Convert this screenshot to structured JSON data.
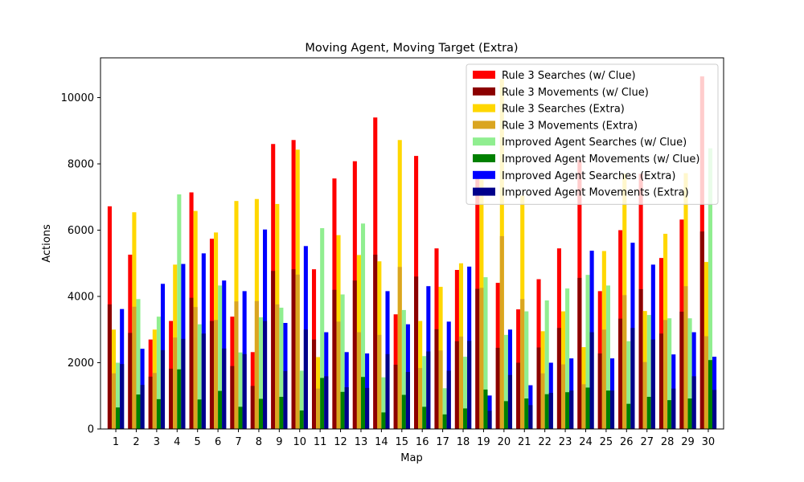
{
  "chart_data": {
    "type": "bar",
    "title": "Moving Agent, Moving Target (Extra)",
    "xlabel": "Map",
    "ylabel": "Actions",
    "ylim": [
      0,
      11200
    ],
    "yticks": [
      0,
      2000,
      4000,
      6000,
      8000,
      10000
    ],
    "grid": false,
    "legend_position": "upper-right",
    "categories": [
      "1",
      "2",
      "3",
      "4",
      "5",
      "6",
      "7",
      "8",
      "9",
      "10",
      "11",
      "12",
      "13",
      "14",
      "15",
      "16",
      "17",
      "18",
      "19",
      "20",
      "21",
      "22",
      "23",
      "24",
      "25",
      "26",
      "27",
      "28",
      "29",
      "30"
    ],
    "groups": [
      {
        "searches": {
          "name": "Rule 3 Searches (w/ Clue)",
          "color": "#ff0000",
          "values": [
            6720,
            5260,
            2700,
            3260,
            7140,
            5740,
            3390,
            2320,
            8600,
            8720,
            4820,
            7560,
            8080,
            9400,
            3460,
            8240,
            5450,
            4800,
            7560,
            4410,
            3610,
            4520,
            5450,
            8120,
            4160,
            6000,
            7700,
            5160,
            6320,
            10640
          ]
        },
        "movements": {
          "name": "Rule 3 Movements (w/ Clue)",
          "color": "#8b0000",
          "values": [
            3760,
            2900,
            1580,
            1820,
            3960,
            3260,
            1900,
            1300,
            4770,
            4820,
            2700,
            4200,
            4480,
            5260,
            1940,
            4600,
            3010,
            2650,
            4230,
            2450,
            2000,
            2460,
            3050,
            4560,
            2280,
            3330,
            4220,
            2880,
            3540,
            5960
          ]
        }
      },
      {
        "searches": {
          "name": "Rule 3 Searches (Extra)",
          "color": "#ffd700",
          "values": [
            3000,
            6540,
            3000,
            4960,
            6580,
            5930,
            6880,
            6940,
            6790,
            8430,
            2170,
            5850,
            5250,
            5060,
            8720,
            3260,
            4290,
            5000,
            7520,
            10560,
            7040,
            2950,
            3550,
            2470,
            5370,
            7700,
            3560,
            5890,
            7720,
            5040
          ]
        },
        "movements": {
          "name": "Rule 3 Movements (Extra)",
          "color": "#daa520",
          "values": [
            1680,
            3690,
            1690,
            2760,
            3680,
            3290,
            3850,
            3860,
            3760,
            4660,
            1220,
            3240,
            2920,
            2840,
            4890,
            1840,
            2370,
            2790,
            4260,
            5820,
            3920,
            1680,
            1950,
            1350,
            3000,
            4040,
            2020,
            3290,
            4310,
            2800
          ]
        }
      },
      {
        "searches": {
          "name": "Improved Agent Searches (w/ Clue)",
          "color": "#90ee90",
          "values": [
            2000,
            3920,
            3390,
            7080,
            3160,
            4330,
            2310,
            3370,
            3660,
            1760,
            6060,
            4060,
            6200,
            1560,
            3590,
            2200,
            1230,
            2180,
            4580,
            2840,
            3550,
            3880,
            4240,
            4650,
            4330,
            2650,
            3440,
            3340,
            3340,
            8470
          ]
        },
        "movements": {
          "name": "Improved Agent Movements (w/ Clue)",
          "color": "#008000",
          "values": [
            650,
            1040,
            900,
            1800,
            890,
            1150,
            670,
            910,
            970,
            560,
            1540,
            1120,
            1570,
            500,
            1030,
            670,
            440,
            620,
            1190,
            840,
            920,
            1050,
            1110,
            1250,
            1160,
            760,
            970,
            870,
            920,
            2080
          ]
        }
      },
      {
        "searches": {
          "name": "Improved Agent Searches (Extra)",
          "color": "#0000ff",
          "values": [
            3620,
            2420,
            4380,
            4980,
            5300,
            4480,
            4160,
            6020,
            3200,
            5520,
            2920,
            2320,
            2280,
            4160,
            3160,
            4310,
            3240,
            4900,
            1010,
            3000,
            1320,
            2000,
            2130,
            5380,
            2130,
            5620,
            4960,
            2250,
            2920,
            2180
          ]
        },
        "movements": {
          "name": "Improved Agent Movements (Extra)",
          "color": "#00008b",
          "values": [
            1960,
            1330,
            2380,
            2720,
            2880,
            2430,
            2260,
            3260,
            1750,
            3000,
            1590,
            1260,
            1240,
            2260,
            1720,
            2340,
            1760,
            2660,
            550,
            1630,
            720,
            1090,
            1160,
            2920,
            1160,
            3050,
            2700,
            1220,
            1590,
            1180
          ]
        }
      }
    ]
  }
}
